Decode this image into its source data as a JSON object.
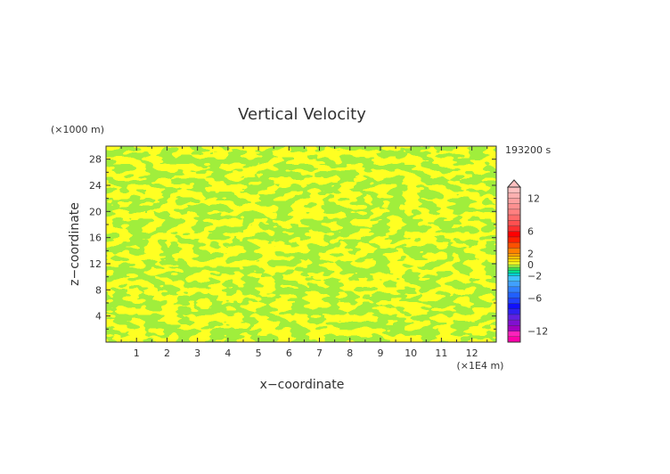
{
  "chart_data": {
    "type": "heatmap",
    "title": "Vertical Velocity",
    "xlabel": "x−coordinate",
    "ylabel": "z−coordinate",
    "x_unit": "(×1E4 m)",
    "y_unit": "(×1000 m)",
    "time_label": "193200 s",
    "xlim": [
      0,
      12.8
    ],
    "ylim": [
      0,
      30
    ],
    "x_ticks": [
      1,
      2,
      3,
      4,
      5,
      6,
      7,
      8,
      9,
      10,
      11,
      12
    ],
    "y_ticks": [
      4,
      8,
      12,
      16,
      20,
      24,
      28
    ],
    "colorbar": {
      "tick_labels": [
        "12",
        "6",
        "2",
        "0",
        "−2",
        "−6",
        "−12"
      ],
      "tick_values": [
        12,
        6,
        2,
        0,
        -2,
        -6,
        -12
      ],
      "levels": [
        -14,
        -13,
        -12,
        -11,
        -10,
        -9,
        -8,
        -7,
        -6,
        -5,
        -4,
        -3,
        -2,
        -1.5,
        -1,
        -0.5,
        0,
        0.5,
        1,
        1.5,
        2,
        3,
        4,
        5,
        6,
        7,
        8,
        9,
        10,
        11,
        12,
        13,
        14
      ],
      "colors": [
        "#ff00aa",
        "#ff22bb",
        "#a000c0",
        "#8010d0",
        "#6020e0",
        "#3020f0",
        "#1010ff",
        "#2040ff",
        "#2060ff",
        "#3080ff",
        "#40a0ff",
        "#40c0ff",
        "#00d0d0",
        "#00e090",
        "#40e050",
        "#a0ee3c",
        "#ffff22",
        "#ffe000",
        "#ffc000",
        "#ffa000",
        "#ff8000",
        "#ff5000",
        "#ff2000",
        "#ff0000",
        "#ff3030",
        "#ff5050",
        "#ff6a6a",
        "#ff8080",
        "#ff9090",
        "#ffa0a0",
        "#ffb0b0",
        "#ffc0c0"
      ],
      "extend": "max"
    },
    "field_colors": {
      "negative": "#a0ee3c",
      "positive": "#ffff22"
    },
    "grid": false
  }
}
